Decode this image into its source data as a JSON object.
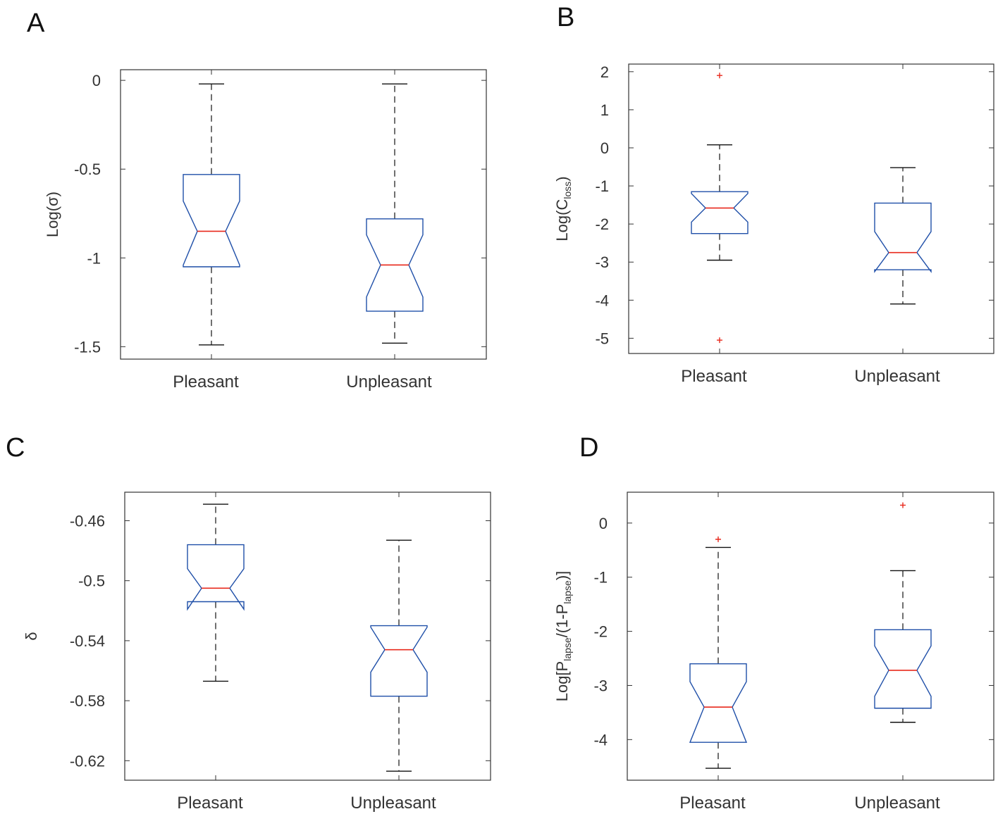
{
  "colors": {
    "box": "#1f4fa8",
    "median": "#e8291c",
    "whisker": "#111111",
    "outlier": "#e8291c",
    "axis": "#333333"
  },
  "chart_data": [
    {
      "panel": "A",
      "type": "box",
      "ylabel": "Log(σ)",
      "ylabel_sub": "",
      "ylabel_suffix": "",
      "categories": [
        "Pleasant",
        "Unpleasant"
      ],
      "ylim": [
        -1.57,
        0.06
      ],
      "yticks": [
        0,
        -0.5,
        -1,
        -1.5
      ],
      "ytick_labels": [
        "0",
        "-0.5",
        "-1",
        "-1.5"
      ],
      "boxes": [
        {
          "whisker_low": -1.49,
          "q1": -1.05,
          "notch_low": -1.04,
          "median": -0.85,
          "notch_high": -0.68,
          "q3": -0.53,
          "whisker_high": -0.02,
          "outliers": []
        },
        {
          "whisker_low": -1.48,
          "q1": -1.3,
          "notch_low": -1.22,
          "median": -1.04,
          "notch_high": -0.87,
          "q3": -0.78,
          "whisker_high": -0.02,
          "outliers": []
        }
      ]
    },
    {
      "panel": "B",
      "type": "box",
      "ylabel": "Log(C",
      "ylabel_sub": "loss",
      "ylabel_suffix": ")",
      "categories": [
        "Pleasant",
        "Unpleasant"
      ],
      "ylim": [
        -5.4,
        2.2
      ],
      "yticks": [
        2,
        1,
        0,
        -1,
        -2,
        -3,
        -4,
        -5
      ],
      "ytick_labels": [
        "2",
        "1",
        "0",
        "-1",
        "-2",
        "-3",
        "-4",
        "-5"
      ],
      "boxes": [
        {
          "whisker_low": -2.95,
          "q1": -2.25,
          "notch_low": -1.95,
          "median": -1.58,
          "notch_high": -1.2,
          "q3": -1.15,
          "whisker_high": 0.08,
          "outliers": [
            1.9,
            -5.05
          ]
        },
        {
          "whisker_low": -4.1,
          "q1": -3.2,
          "notch_low": -3.25,
          "median": -2.75,
          "notch_high": -2.2,
          "q3": -1.45,
          "whisker_high": -0.52,
          "outliers": []
        }
      ]
    },
    {
      "panel": "C",
      "type": "box",
      "ylabel": "δ",
      "ylabel_sub": "",
      "ylabel_suffix": "",
      "categories": [
        "Pleasant",
        "Unpleasant"
      ],
      "ylim": [
        -0.633,
        -0.441
      ],
      "yticks": [
        -0.46,
        -0.5,
        -0.54,
        -0.58,
        -0.62
      ],
      "ytick_labels": [
        "-0.46",
        "-0.5",
        "-0.54",
        "-0.58",
        "-0.62"
      ],
      "boxes": [
        {
          "whisker_low": -0.567,
          "q1": -0.514,
          "notch_low": -0.519,
          "median": -0.505,
          "notch_high": -0.492,
          "q3": -0.476,
          "whisker_high": -0.449,
          "outliers": []
        },
        {
          "whisker_low": -0.627,
          "q1": -0.577,
          "notch_low": -0.561,
          "median": -0.546,
          "notch_high": -0.531,
          "q3": -0.53,
          "whisker_high": -0.473,
          "outliers": []
        }
      ]
    },
    {
      "panel": "D",
      "type": "box",
      "ylabel": "Log[P",
      "ylabel_sub": "lapse",
      "ylabel_suffix": "/(1-P",
      "ylabel_sub2": "lapse",
      "ylabel_suffix2": ")]",
      "categories": [
        "Pleasant",
        "Unpleasant"
      ],
      "ylim": [
        -4.75,
        0.57
      ],
      "yticks": [
        0,
        -1,
        -2,
        -3,
        -4
      ],
      "ytick_labels": [
        "0",
        "-1",
        "-2",
        "-3",
        "-4"
      ],
      "boxes": [
        {
          "whisker_low": -4.53,
          "q1": -4.05,
          "notch_low": -4.05,
          "median": -3.4,
          "notch_high": -2.93,
          "q3": -2.6,
          "whisker_high": -0.45,
          "outliers": [
            -0.3
          ]
        },
        {
          "whisker_low": -3.68,
          "q1": -3.42,
          "notch_low": -3.2,
          "median": -2.72,
          "notch_high": -2.27,
          "q3": -1.97,
          "whisker_high": -0.88,
          "outliers": [
            0.33
          ]
        }
      ]
    }
  ]
}
